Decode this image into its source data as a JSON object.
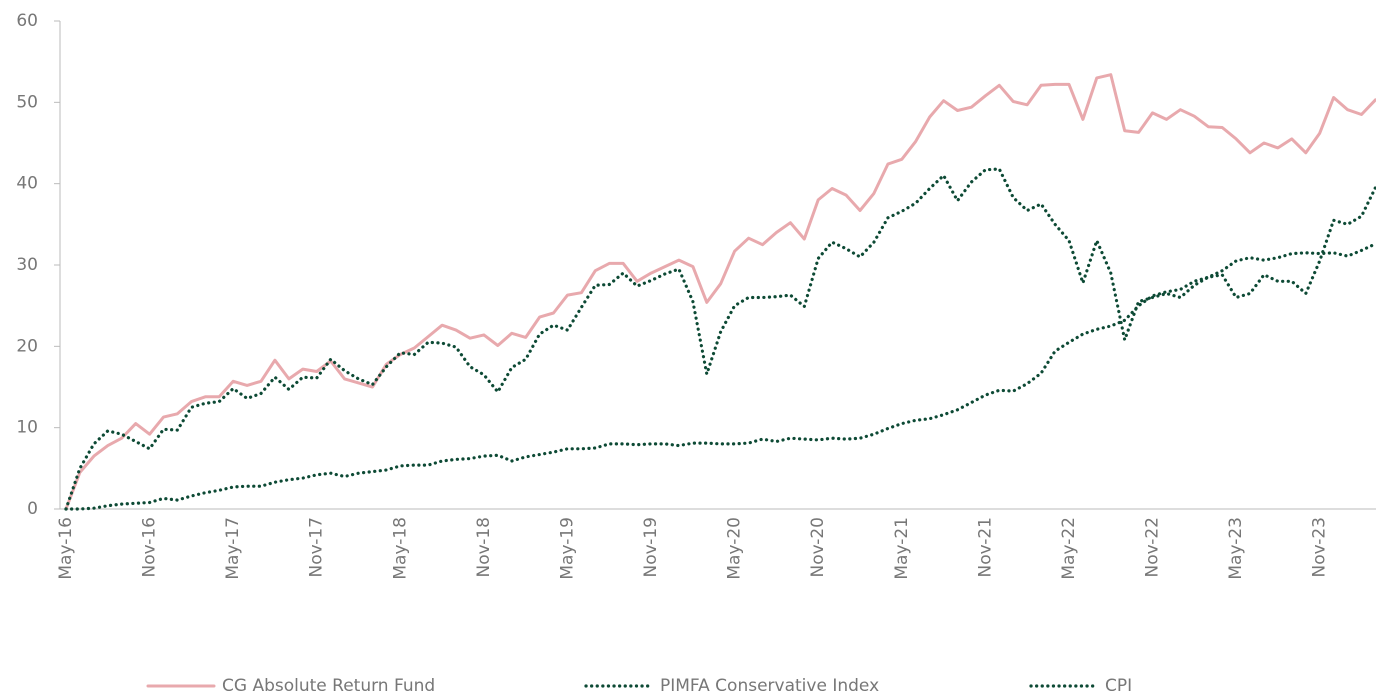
{
  "chart_data": {
    "type": "line",
    "categories": [
      "May-16",
      null,
      null,
      null,
      null,
      null,
      "Nov-16",
      null,
      null,
      null,
      null,
      null,
      "May-17",
      null,
      null,
      null,
      null,
      null,
      "Nov-17",
      null,
      null,
      null,
      null,
      null,
      "May-18",
      null,
      null,
      null,
      null,
      null,
      "Nov-18",
      null,
      null,
      null,
      null,
      null,
      "May-19",
      null,
      null,
      null,
      null,
      null,
      "Nov-19",
      null,
      null,
      null,
      null,
      null,
      "May-20",
      null,
      null,
      null,
      null,
      null,
      "Nov-20",
      null,
      null,
      null,
      null,
      null,
      "May-21",
      null,
      null,
      null,
      null,
      null,
      "Nov-21",
      null,
      null,
      null,
      null,
      null,
      "May-22",
      null,
      null,
      null,
      null,
      null,
      "Nov-22",
      null,
      null,
      null,
      null,
      null,
      "May-23",
      null,
      null,
      null,
      null,
      null,
      "Nov-23",
      null,
      null,
      null,
      null
    ],
    "series": [
      {
        "name": "CG Absolute Return Fund",
        "color": "#e8a9ad",
        "style": "solid",
        "values": [
          0,
          4.5,
          6.5,
          7.8,
          8.7,
          10.5,
          9.2,
          11.3,
          11.7,
          13.2,
          13.8,
          13.8,
          15.7,
          15.2,
          15.7,
          18.3,
          16,
          17.2,
          16.9,
          18.2,
          16,
          15.5,
          15,
          17.8,
          19,
          19.8,
          21.2,
          22.6,
          22,
          21,
          21.4,
          20.1,
          21.6,
          21.1,
          23.6,
          24.1,
          26.3,
          26.6,
          29.3,
          30.2,
          30.2,
          28,
          29,
          29.8,
          30.6,
          29.8,
          25.4,
          27.7,
          31.7,
          33.3,
          32.5,
          34,
          35.2,
          33.2,
          38,
          39.4,
          38.6,
          36.7,
          38.8,
          42.4,
          43,
          45.2,
          48.2,
          50.2,
          49,
          49.4,
          50.8,
          52.1,
          50.1,
          49.7,
          52.1,
          52.2,
          52.2,
          47.9,
          53,
          53.4,
          46.5,
          46.3,
          48.7,
          47.9,
          49.1,
          48.3,
          47,
          46.9,
          45.5,
          43.8,
          45,
          44.4,
          45.5,
          43.8,
          46.2,
          50.6,
          49.1,
          48.5,
          50.3
        ]
      },
      {
        "name": "PIMFA Conservative Index",
        "color": "#0d4a35",
        "style": "dotted",
        "values": [
          0,
          5,
          8,
          9.6,
          9.2,
          8.3,
          7.4,
          9.8,
          9.7,
          12.5,
          13,
          13.2,
          14.8,
          13.6,
          14.2,
          16.2,
          14.7,
          16.2,
          16.1,
          18.4,
          17,
          16,
          15.3,
          17.5,
          19.2,
          19,
          20.5,
          20.4,
          19.9,
          17.5,
          16.5,
          14.4,
          17.4,
          18.4,
          21.5,
          22.6,
          22,
          24.8,
          27.5,
          27.6,
          29,
          27.4,
          28.1,
          28.9,
          29.5,
          25.5,
          16.6,
          21.8,
          25,
          26,
          26,
          26.1,
          26.3,
          24.9,
          30.8,
          32.8,
          32,
          31,
          32.8,
          35.8,
          36.6,
          37.6,
          39.4,
          41,
          37.9,
          40.2,
          41.7,
          41.8,
          38.3,
          36.7,
          37.5,
          35,
          33,
          27.8,
          33,
          29,
          20.8,
          25.5,
          26,
          26.5,
          26,
          27.5,
          28.5,
          28.8,
          26,
          26.5,
          28.8,
          28,
          28,
          26.5,
          30.5,
          35.5,
          35,
          36,
          39.5
        ]
      },
      {
        "name": "CPI",
        "color": "#0d4a35",
        "style": "dotted",
        "values": [
          0,
          0,
          0.1,
          0.4,
          0.6,
          0.7,
          0.8,
          1.3,
          1.1,
          1.6,
          2,
          2.3,
          2.7,
          2.8,
          2.8,
          3.3,
          3.6,
          3.8,
          4.2,
          4.4,
          4,
          4.4,
          4.6,
          4.8,
          5.3,
          5.4,
          5.4,
          5.9,
          6.1,
          6.2,
          6.5,
          6.6,
          5.9,
          6.4,
          6.7,
          7,
          7.4,
          7.4,
          7.5,
          8,
          8,
          7.9,
          8,
          8,
          7.8,
          8.1,
          8.1,
          8,
          8,
          8.1,
          8.6,
          8.3,
          8.7,
          8.6,
          8.5,
          8.7,
          8.6,
          8.7,
          9.2,
          9.9,
          10.5,
          10.9,
          11.1,
          11.6,
          12.2,
          13.1,
          14,
          14.6,
          14.5,
          15.4,
          16.7,
          19.4,
          20.5,
          21.5,
          22.1,
          22.5,
          23.2,
          25,
          26.2,
          26.7,
          27,
          28,
          28.5,
          29.3,
          30.5,
          30.9,
          30.6,
          30.9,
          31.4,
          31.5,
          31.4,
          31.5,
          31.1,
          31.8,
          32.6
        ]
      }
    ],
    "ylim": [
      0,
      60
    ],
    "yticks": [
      0,
      10,
      20,
      30,
      40,
      50,
      60
    ],
    "grid": false,
    "legend": "bottom"
  }
}
